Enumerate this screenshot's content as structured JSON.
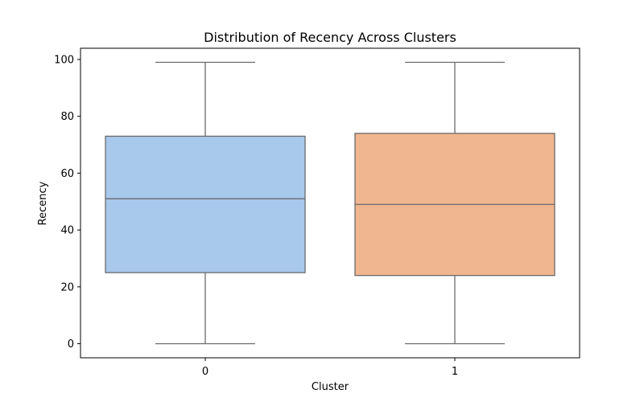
{
  "chart_data": {
    "type": "box",
    "title": "Distribution of Recency Across Clusters",
    "xlabel": "Cluster",
    "ylabel": "Recency",
    "ylim": [
      -4.95,
      103.95
    ],
    "yticks": [
      0,
      20,
      40,
      60,
      80,
      100
    ],
    "grid": false,
    "categories": [
      "0",
      "1"
    ],
    "boxes": [
      {
        "category": "0",
        "min": 0,
        "q1": 25,
        "median": 51,
        "q3": 73,
        "max": 99,
        "color": "#a8c8ec"
      },
      {
        "category": "1",
        "min": 0,
        "q1": 24,
        "median": 49,
        "q3": 74,
        "max": 99,
        "color": "#f0b690"
      }
    ],
    "line_color": "#6b6b6b"
  }
}
